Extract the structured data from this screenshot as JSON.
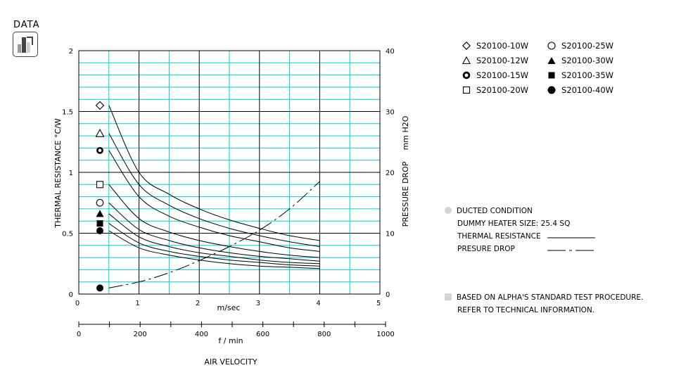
{
  "badge": {
    "label": "DATA"
  },
  "chart_data": {
    "type": "line",
    "x_velocity": {
      "label": "m/sec",
      "ticks": [
        "0",
        "1",
        "2",
        "3",
        "4",
        "5"
      ],
      "range": [
        0,
        5
      ]
    },
    "x_flow": {
      "label": "f / min",
      "ticks": [
        "0",
        "200",
        "400",
        "600",
        "800",
        "1000"
      ],
      "range": [
        0,
        1000
      ]
    },
    "x_title": "AIR VELOCITY",
    "y_left": {
      "label": "THERMAL  RESISTANCE   °C/W",
      "ticks": [
        "0",
        "0.5",
        "1",
        "1.5",
        "2"
      ],
      "range": [
        0,
        2
      ]
    },
    "y_right": {
      "label_main": "PRESSURE  DROP",
      "label_unit": "mm H2O",
      "ticks": [
        "0",
        "10",
        "20",
        "30",
        "40"
      ],
      "range": [
        0,
        40
      ]
    },
    "grid": true,
    "x": [
      0.5,
      1.0,
      1.5,
      2.0,
      2.5,
      3.0,
      3.5,
      4.0
    ],
    "series": [
      {
        "name": "S20100-10W",
        "marker": "diamond-open",
        "marker_y": 1.55,
        "values": [
          1.55,
          1.0,
          0.82,
          0.7,
          0.61,
          0.54,
          0.48,
          0.44
        ]
      },
      {
        "name": "S20100-12W",
        "marker": "triangle-open",
        "marker_y": 1.32,
        "values": [
          1.32,
          0.9,
          0.73,
          0.62,
          0.54,
          0.48,
          0.43,
          0.39
        ]
      },
      {
        "name": "S20100-15W",
        "marker": "ring-bold",
        "marker_y": 1.18,
        "values": [
          1.18,
          0.8,
          0.64,
          0.55,
          0.48,
          0.43,
          0.38,
          0.35
        ]
      },
      {
        "name": "S20100-20W",
        "marker": "square-open",
        "marker_y": 0.9,
        "values": [
          0.9,
          0.62,
          0.51,
          0.44,
          0.39,
          0.35,
          0.32,
          0.3
        ]
      },
      {
        "name": "S20100-25W",
        "marker": "circle-open",
        "marker_y": 0.75,
        "values": [
          0.75,
          0.53,
          0.44,
          0.38,
          0.34,
          0.31,
          0.29,
          0.27
        ]
      },
      {
        "name": "S20100-30W",
        "marker": "triangle-filled",
        "marker_y": 0.66,
        "values": [
          0.66,
          0.47,
          0.39,
          0.34,
          0.31,
          0.28,
          0.26,
          0.25
        ]
      },
      {
        "name": "S20100-35W",
        "marker": "square-filled",
        "marker_y": 0.58,
        "values": [
          0.58,
          0.42,
          0.35,
          0.31,
          0.28,
          0.26,
          0.24,
          0.23
        ]
      },
      {
        "name": "S20100-40W",
        "marker": "circle-filled",
        "marker_y": 0.52,
        "values": [
          0.52,
          0.38,
          0.32,
          0.28,
          0.25,
          0.23,
          0.22,
          0.21
        ]
      }
    ],
    "pressure_drop": {
      "marker": "circle-filled",
      "marker_value": 1.0,
      "x": [
        0.5,
        1.0,
        1.5,
        2.0,
        2.5,
        3.0,
        3.5,
        4.0
      ],
      "values": [
        1.0,
        2.0,
        3.5,
        5.5,
        7.8,
        10.5,
        14.0,
        18.5
      ]
    }
  },
  "notes": {
    "ducted": "DUCTED CONDITION",
    "heater": "DUMMY HEATER SIZE: 25.4 SQ",
    "thermal": "THERMAL RESISTANCE",
    "pressure": "PRESURE DROP",
    "based": "BASED ON ALPHA'S STANDARD TEST PROCEDURE.",
    "refer": "REFER TO TECHNICAL INFORMATION."
  },
  "colors": {
    "grid_cyan": "#00cccc",
    "grid_black": "#000000",
    "bullet_gray": "#d4d4d4",
    "text": "#000000"
  }
}
